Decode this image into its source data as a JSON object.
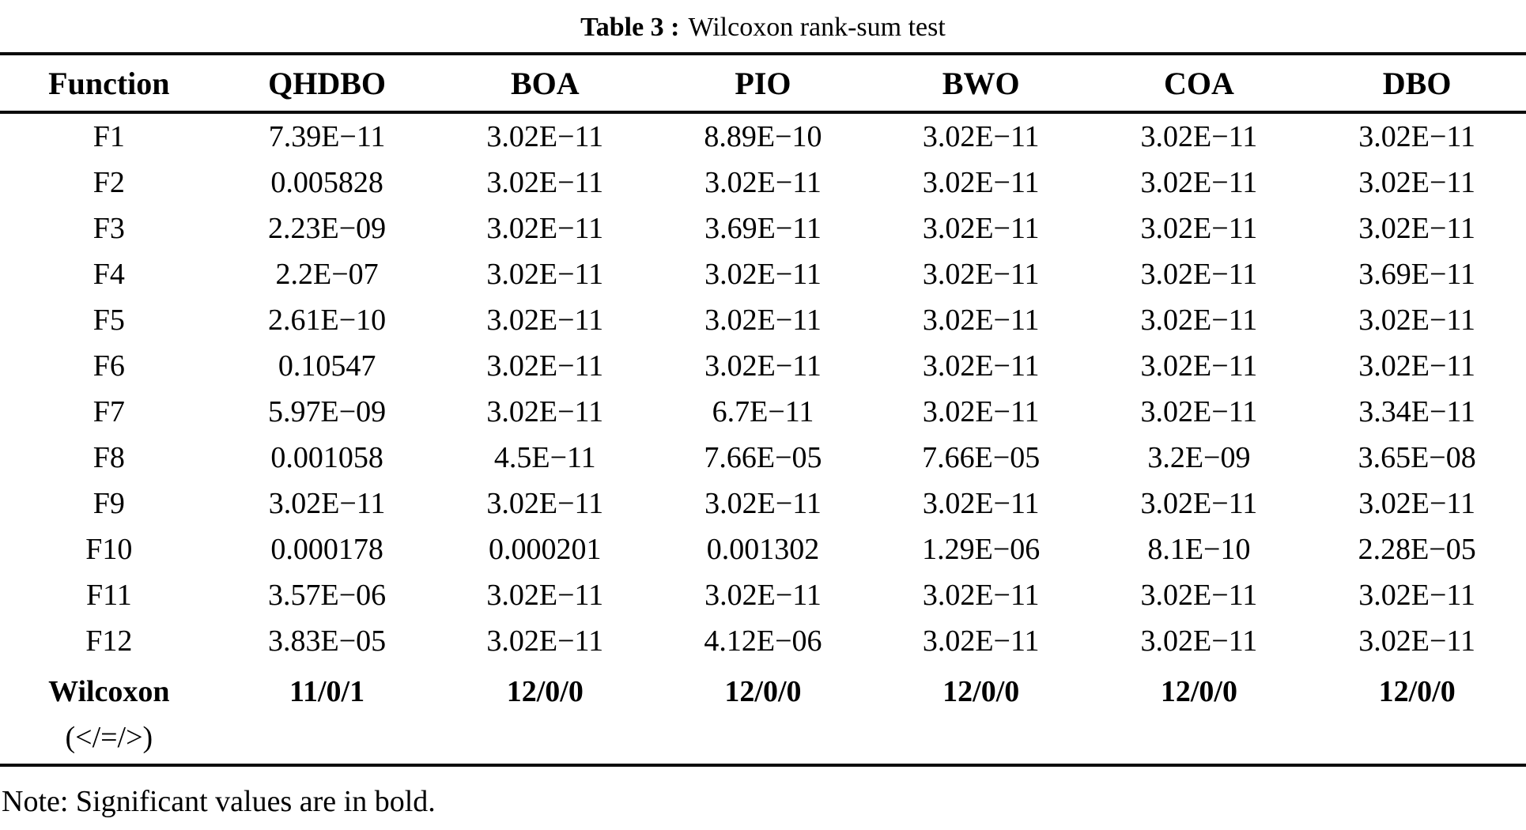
{
  "title": {
    "bold": "Table 3 :",
    "rest": "Wilcoxon rank-sum test"
  },
  "note": "Note: Significant values are in bold.",
  "table": {
    "columns": [
      "Function",
      "QHDBO",
      "BOA",
      "PIO",
      "BWO",
      "COA",
      "DBO"
    ],
    "rows": [
      {
        "function": "F1",
        "values": [
          "7.39E−11",
          "3.02E−11",
          "8.89E−10",
          "3.02E−11",
          "3.02E−11",
          "3.02E−11"
        ]
      },
      {
        "function": "F2",
        "values": [
          "0.005828",
          "3.02E−11",
          "3.02E−11",
          "3.02E−11",
          "3.02E−11",
          "3.02E−11"
        ]
      },
      {
        "function": "F3",
        "values": [
          "2.23E−09",
          "3.02E−11",
          "3.69E−11",
          "3.02E−11",
          "3.02E−11",
          "3.02E−11"
        ]
      },
      {
        "function": "F4",
        "values": [
          "2.2E−07",
          "3.02E−11",
          "3.02E−11",
          "3.02E−11",
          "3.02E−11",
          "3.69E−11"
        ]
      },
      {
        "function": "F5",
        "values": [
          "2.61E−10",
          "3.02E−11",
          "3.02E−11",
          "3.02E−11",
          "3.02E−11",
          "3.02E−11"
        ]
      },
      {
        "function": "F6",
        "values": [
          "0.10547",
          "3.02E−11",
          "3.02E−11",
          "3.02E−11",
          "3.02E−11",
          "3.02E−11"
        ]
      },
      {
        "function": "F7",
        "values": [
          "5.97E−09",
          "3.02E−11",
          "6.7E−11",
          "3.02E−11",
          "3.02E−11",
          "3.34E−11"
        ]
      },
      {
        "function": "F8",
        "values": [
          "0.001058",
          "4.5E−11",
          "7.66E−05",
          "7.66E−05",
          "3.2E−09",
          "3.65E−08"
        ]
      },
      {
        "function": "F9",
        "values": [
          "3.02E−11",
          "3.02E−11",
          "3.02E−11",
          "3.02E−11",
          "3.02E−11",
          "3.02E−11"
        ]
      },
      {
        "function": "F10",
        "values": [
          "0.000178",
          "0.000201",
          "0.001302",
          "1.29E−06",
          "8.1E−10",
          "2.28E−05"
        ]
      },
      {
        "function": "F11",
        "values": [
          "3.57E−06",
          "3.02E−11",
          "3.02E−11",
          "3.02E−11",
          "3.02E−11",
          "3.02E−11"
        ]
      },
      {
        "function": "F12",
        "values": [
          "3.83E−05",
          "3.02E−11",
          "4.12E−06",
          "3.02E−11",
          "3.02E−11",
          "3.02E−11"
        ]
      }
    ],
    "summary": {
      "label": "Wilcoxon",
      "label_line2": "(</=/>)",
      "values": [
        "11/0/1",
        "12/0/0",
        "12/0/0",
        "12/0/0",
        "12/0/0",
        "12/0/0"
      ]
    }
  }
}
